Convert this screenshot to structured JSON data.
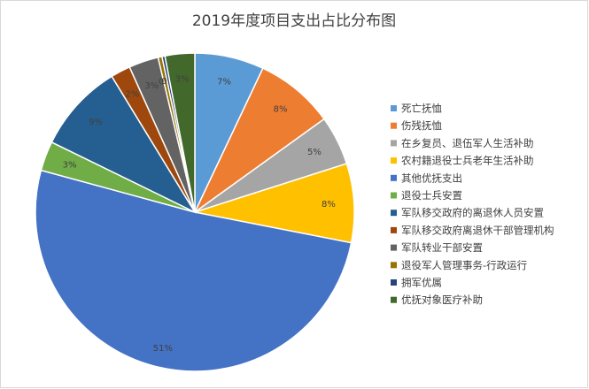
{
  "chart_data": {
    "type": "pie",
    "title": "2019年度项目支出占比分布图",
    "categories": [
      "死亡抚恤",
      "伤残抚恤",
      "在乡复员、退伍军人生活补助",
      "农村籍退役士兵老年生活补助",
      "其他优抚支出",
      "退役士兵安置",
      "军队移交政府的离退休人员安置",
      "军队移交政府离退休干部管理机构",
      "军队转业干部安置",
      "退役军人管理事务-行政运行",
      "拥军优属",
      "优抚对象医疗补助"
    ],
    "values": [
      7,
      8,
      5,
      8,
      51,
      3,
      9,
      2,
      3,
      0.4,
      0.3,
      3
    ],
    "value_labels": [
      "7%",
      "8%",
      "5%",
      "8%",
      "51%",
      "3%",
      "9%",
      "2%",
      "3%",
      "0%",
      "0%",
      "3%"
    ],
    "colors": [
      "#5b9bd5",
      "#ed7d31",
      "#a5a5a5",
      "#ffc000",
      "#4472c4",
      "#70ad47",
      "#255e91",
      "#9e480e",
      "#636363",
      "#997300",
      "#264478",
      "#43682b"
    ],
    "legend": "right"
  }
}
